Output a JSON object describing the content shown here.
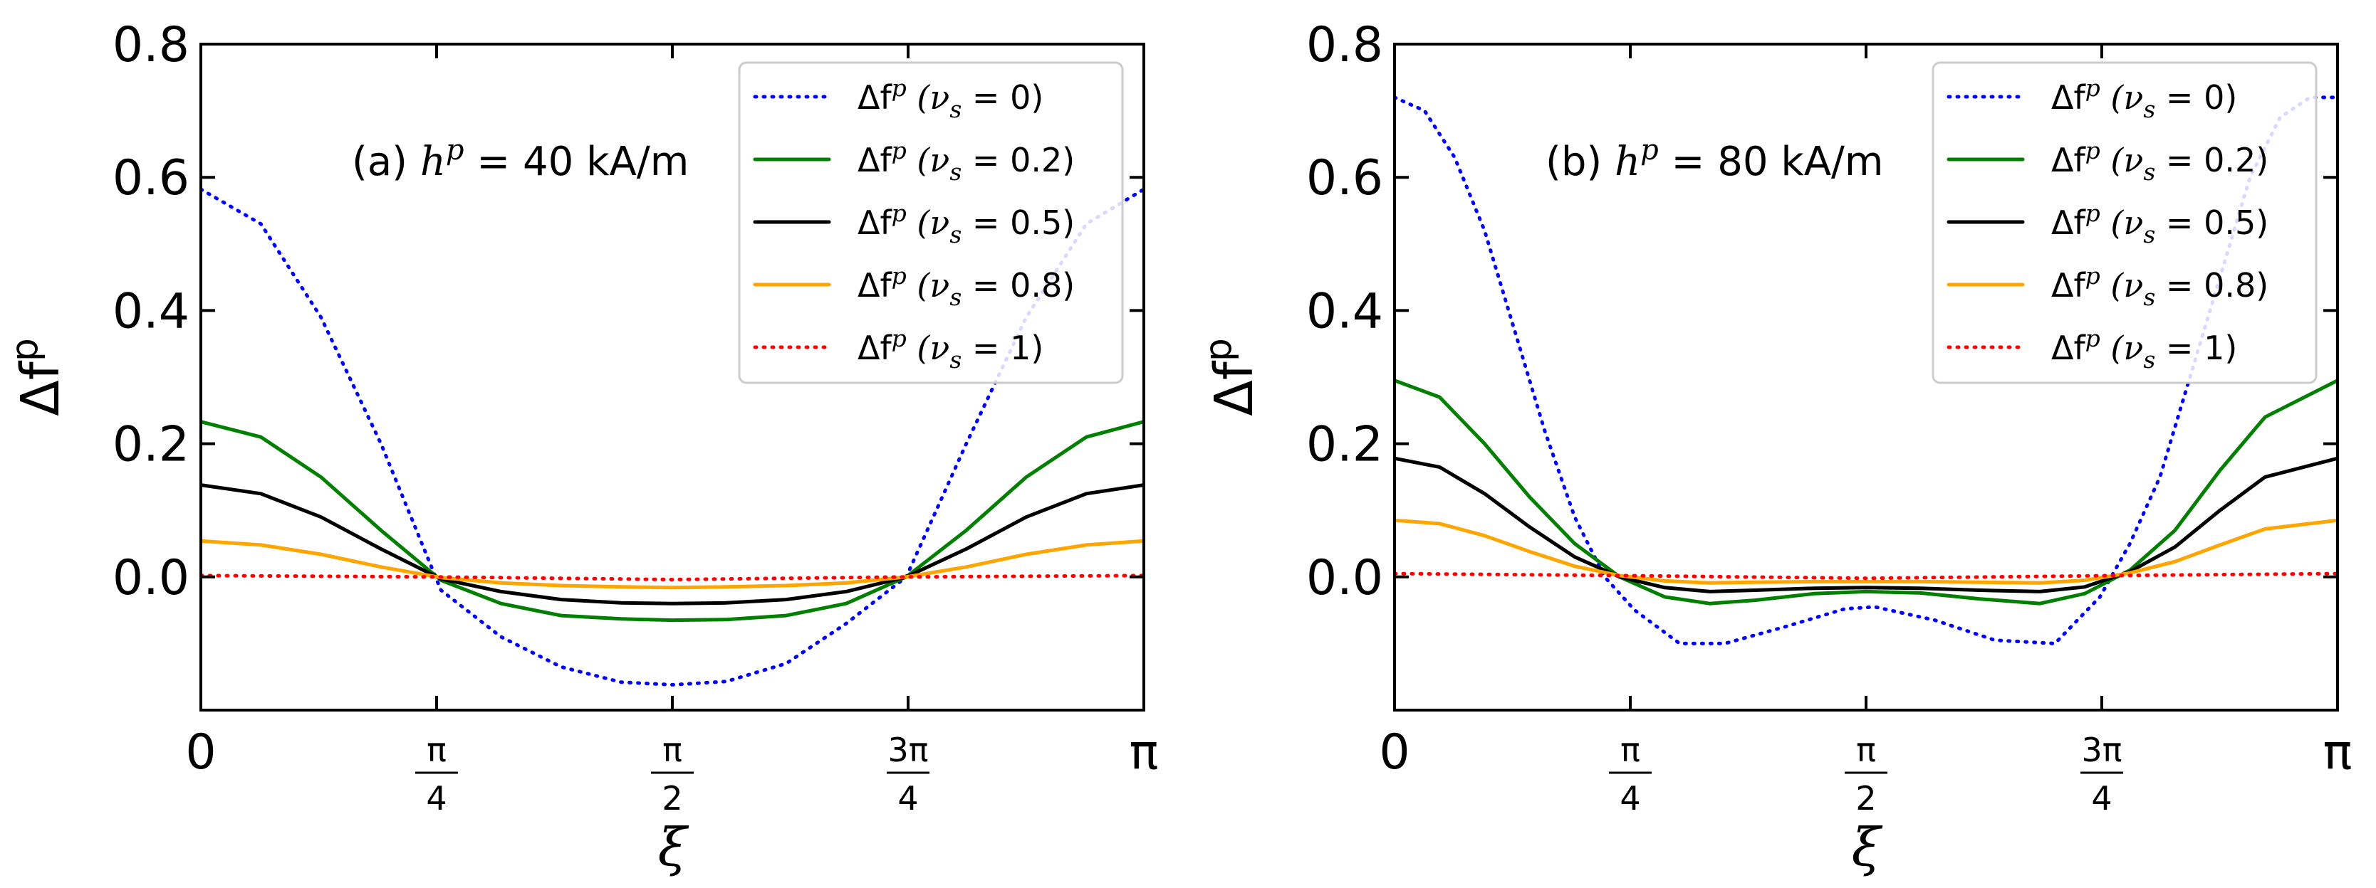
{
  "chart_data": [
    {
      "type": "line",
      "title": "",
      "annotation": {
        "prefix": "(a) ",
        "var": "h",
        "sup": "p",
        "value": " = 40 kA/m"
      },
      "xlabel": "ξ",
      "ylabel": {
        "base": "Δf",
        "sup": "p"
      },
      "xlim": [
        0,
        3.14159
      ],
      "ylim": [
        -0.2,
        0.8
      ],
      "yticks": [
        {
          "value": 0.0,
          "label": "0.0"
        },
        {
          "value": 0.2,
          "label": "0.2"
        },
        {
          "value": 0.4,
          "label": "0.4"
        },
        {
          "value": 0.6,
          "label": "0.6"
        },
        {
          "value": 0.8,
          "label": "0.8"
        }
      ],
      "xticks": [
        {
          "value": 0,
          "label": "0"
        },
        {
          "value": 0.7854,
          "num": "π",
          "den": "4"
        },
        {
          "value": 1.5708,
          "num": "π",
          "den": "2"
        },
        {
          "value": 2.3562,
          "num": "3π",
          "den": "4"
        },
        {
          "value": 3.14159,
          "label": "π"
        }
      ],
      "grid": false,
      "legend_position": "top-right",
      "series": [
        {
          "label": "Δf",
          "sup": "p",
          "param": "(ν",
          "sub": "s",
          "tail": " = 0)",
          "color": "#0000ff",
          "dash": "dotted",
          "x": [
            0,
            0.2,
            0.4,
            0.6,
            0.8,
            1.0,
            1.2,
            1.4,
            1.5708,
            1.75,
            1.95,
            2.15,
            2.35,
            2.55,
            2.75,
            2.95,
            3.14159
          ],
          "y": [
            0.582,
            0.53,
            0.39,
            0.2,
            -0.02,
            -0.09,
            -0.135,
            -0.158,
            -0.162,
            -0.157,
            -0.13,
            -0.07,
            0.0,
            0.2,
            0.39,
            0.53,
            0.582
          ]
        },
        {
          "label": "Δf",
          "sup": "p",
          "param": "(ν",
          "sub": "s",
          "tail": " = 0.2)",
          "color": "#007f00",
          "dash": "solid",
          "x": [
            0,
            0.2,
            0.4,
            0.6,
            0.8,
            1.0,
            1.2,
            1.4,
            1.5708,
            1.75,
            1.95,
            2.15,
            2.35,
            2.55,
            2.75,
            2.95,
            3.14159
          ],
          "y": [
            0.233,
            0.21,
            0.15,
            0.07,
            -0.005,
            -0.04,
            -0.058,
            -0.063,
            -0.065,
            -0.064,
            -0.058,
            -0.04,
            0.0,
            0.07,
            0.15,
            0.21,
            0.233
          ]
        },
        {
          "label": "Δf",
          "sup": "p",
          "param": "(ν",
          "sub": "s",
          "tail": " = 0.5)",
          "color": "#000000",
          "dash": "solid",
          "x": [
            0,
            0.2,
            0.4,
            0.6,
            0.8,
            1.0,
            1.2,
            1.4,
            1.5708,
            1.75,
            1.95,
            2.15,
            2.35,
            2.55,
            2.75,
            2.95,
            3.14159
          ],
          "y": [
            0.138,
            0.125,
            0.09,
            0.042,
            -0.003,
            -0.022,
            -0.034,
            -0.039,
            -0.04,
            -0.039,
            -0.034,
            -0.022,
            0.0,
            0.042,
            0.09,
            0.125,
            0.138
          ]
        },
        {
          "label": "Δf",
          "sup": "p",
          "param": "(ν",
          "sub": "s",
          "tail": " = 0.8)",
          "color": "#ffa500",
          "dash": "solid",
          "x": [
            0,
            0.2,
            0.4,
            0.6,
            0.8,
            1.0,
            1.2,
            1.4,
            1.5708,
            1.75,
            1.95,
            2.15,
            2.35,
            2.55,
            2.75,
            2.95,
            3.14159
          ],
          "y": [
            0.054,
            0.048,
            0.034,
            0.015,
            -0.001,
            -0.009,
            -0.013,
            -0.015,
            -0.016,
            -0.015,
            -0.013,
            -0.009,
            0.0,
            0.015,
            0.034,
            0.048,
            0.054
          ]
        },
        {
          "label": "Δf",
          "sup": "p",
          "param": "(ν",
          "sub": "s",
          "tail": " = 1)",
          "color": "#ff0000",
          "dash": "dotted",
          "x": [
            0,
            0.7854,
            1.5708,
            2.3562,
            3.14159
          ],
          "y": [
            0.002,
            0.0,
            -0.004,
            0.0,
            0.002
          ]
        }
      ]
    },
    {
      "type": "line",
      "title": "",
      "annotation": {
        "prefix": "(b) ",
        "var": "h",
        "sup": "p",
        "value": " = 80 kA/m"
      },
      "xlabel": "ξ",
      "ylabel": {
        "base": "Δf",
        "sup": "p"
      },
      "xlim": [
        0,
        3.14159
      ],
      "ylim": [
        -0.2,
        0.8
      ],
      "yticks": [
        {
          "value": 0.0,
          "label": "0.0"
        },
        {
          "value": 0.2,
          "label": "0.2"
        },
        {
          "value": 0.4,
          "label": "0.4"
        },
        {
          "value": 0.6,
          "label": "0.6"
        },
        {
          "value": 0.8,
          "label": "0.8"
        }
      ],
      "xticks": [
        {
          "value": 0,
          "label": "0"
        },
        {
          "value": 0.7854,
          "num": "π",
          "den": "4"
        },
        {
          "value": 1.5708,
          "num": "π",
          "den": "2"
        },
        {
          "value": 2.3562,
          "num": "3π",
          "den": "4"
        },
        {
          "value": 3.14159,
          "label": "π"
        }
      ],
      "grid": false,
      "legend_position": "top-right",
      "series": [
        {
          "label": "Δf",
          "sup": "p",
          "param": "(ν",
          "sub": "s",
          "tail": " = 0)",
          "color": "#0000ff",
          "dash": "dotted",
          "x": [
            0,
            0.1,
            0.2,
            0.3,
            0.4,
            0.5,
            0.6,
            0.7,
            0.8,
            0.95,
            1.1,
            1.3,
            1.5,
            1.6,
            1.8,
            2.0,
            2.2,
            2.35,
            2.45,
            2.55,
            2.65,
            2.75,
            2.85,
            2.95,
            3.05,
            3.14159
          ],
          "y": [
            0.72,
            0.7,
            0.63,
            0.52,
            0.37,
            0.22,
            0.09,
            0.0,
            -0.05,
            -0.1,
            -0.1,
            -0.075,
            -0.048,
            -0.045,
            -0.065,
            -0.095,
            -0.1,
            -0.03,
            0.05,
            0.15,
            0.3,
            0.45,
            0.6,
            0.69,
            0.72,
            0.72
          ]
        },
        {
          "label": "Δf",
          "sup": "p",
          "param": "(ν",
          "sub": "s",
          "tail": " = 0.2)",
          "color": "#007f00",
          "dash": "solid",
          "x": [
            0,
            0.15,
            0.3,
            0.45,
            0.6,
            0.75,
            0.9,
            1.05,
            1.2,
            1.4,
            1.5708,
            1.75,
            1.95,
            2.15,
            2.3,
            2.45,
            2.6,
            2.75,
            2.9,
            3.14159
          ],
          "y": [
            0.295,
            0.27,
            0.2,
            0.12,
            0.05,
            0.0,
            -0.03,
            -0.04,
            -0.035,
            -0.025,
            -0.022,
            -0.024,
            -0.033,
            -0.04,
            -0.025,
            0.01,
            0.07,
            0.16,
            0.24,
            0.295
          ]
        },
        {
          "label": "Δf",
          "sup": "p",
          "param": "(ν",
          "sub": "s",
          "tail": " = 0.5)",
          "color": "#000000",
          "dash": "solid",
          "x": [
            0,
            0.15,
            0.3,
            0.45,
            0.6,
            0.75,
            0.9,
            1.05,
            1.2,
            1.4,
            1.5708,
            1.75,
            1.95,
            2.15,
            2.3,
            2.45,
            2.6,
            2.75,
            2.9,
            3.14159
          ],
          "y": [
            0.178,
            0.165,
            0.125,
            0.075,
            0.03,
            0.0,
            -0.016,
            -0.022,
            -0.02,
            -0.017,
            -0.016,
            -0.017,
            -0.02,
            -0.022,
            -0.015,
            0.008,
            0.045,
            0.1,
            0.15,
            0.178
          ]
        },
        {
          "label": "Δf",
          "sup": "p",
          "param": "(ν",
          "sub": "s",
          "tail": " = 0.8)",
          "color": "#ffa500",
          "dash": "solid",
          "x": [
            0,
            0.15,
            0.3,
            0.45,
            0.6,
            0.75,
            0.9,
            1.05,
            1.2,
            1.4,
            1.5708,
            1.75,
            1.95,
            2.15,
            2.3,
            2.45,
            2.6,
            2.75,
            2.9,
            3.14159
          ],
          "y": [
            0.085,
            0.08,
            0.062,
            0.038,
            0.016,
            0.002,
            -0.006,
            -0.009,
            -0.008,
            -0.007,
            -0.007,
            -0.007,
            -0.008,
            -0.009,
            -0.005,
            0.006,
            0.023,
            0.048,
            0.072,
            0.085
          ]
        },
        {
          "label": "Δf",
          "sup": "p",
          "param": "(ν",
          "sub": "s",
          "tail": " = 1)",
          "color": "#ff0000",
          "dash": "dotted",
          "x": [
            0,
            0.75,
            1.5708,
            2.4,
            3.14159
          ],
          "y": [
            0.005,
            0.002,
            -0.002,
            0.002,
            0.005
          ]
        }
      ]
    }
  ]
}
